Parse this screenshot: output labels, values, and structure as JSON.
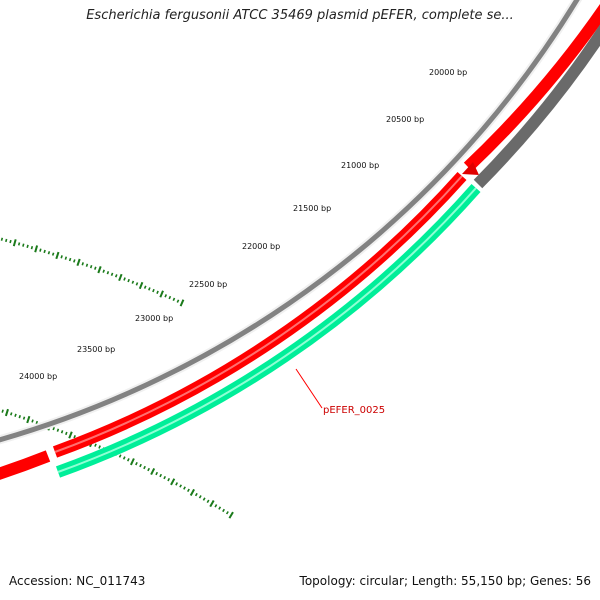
{
  "header": {
    "title": "Escherichia fergusonii ATCC 35469 plasmid pEFER, complete se..."
  },
  "footer": {
    "accession": "Accession: NC_011743",
    "summary": "Topology: circular; Length: 55,150 bp; Genes: 56"
  },
  "ticks": {
    "labels": [
      "20000 bp",
      "20500 bp",
      "21000 bp",
      "21500 bp",
      "22000 bp",
      "22500 bp",
      "23000 bp",
      "23500 bp",
      "24000 bp"
    ]
  },
  "genes": {
    "highlighted_label": "pEFER_0025"
  },
  "colors": {
    "outer_ring": "#808080",
    "forward_feature": "#ff0000",
    "reverse_feature": "#00ee99",
    "reverse_other": "#666666",
    "ticks": "#1a7a1a",
    "label": "#cc0000"
  }
}
